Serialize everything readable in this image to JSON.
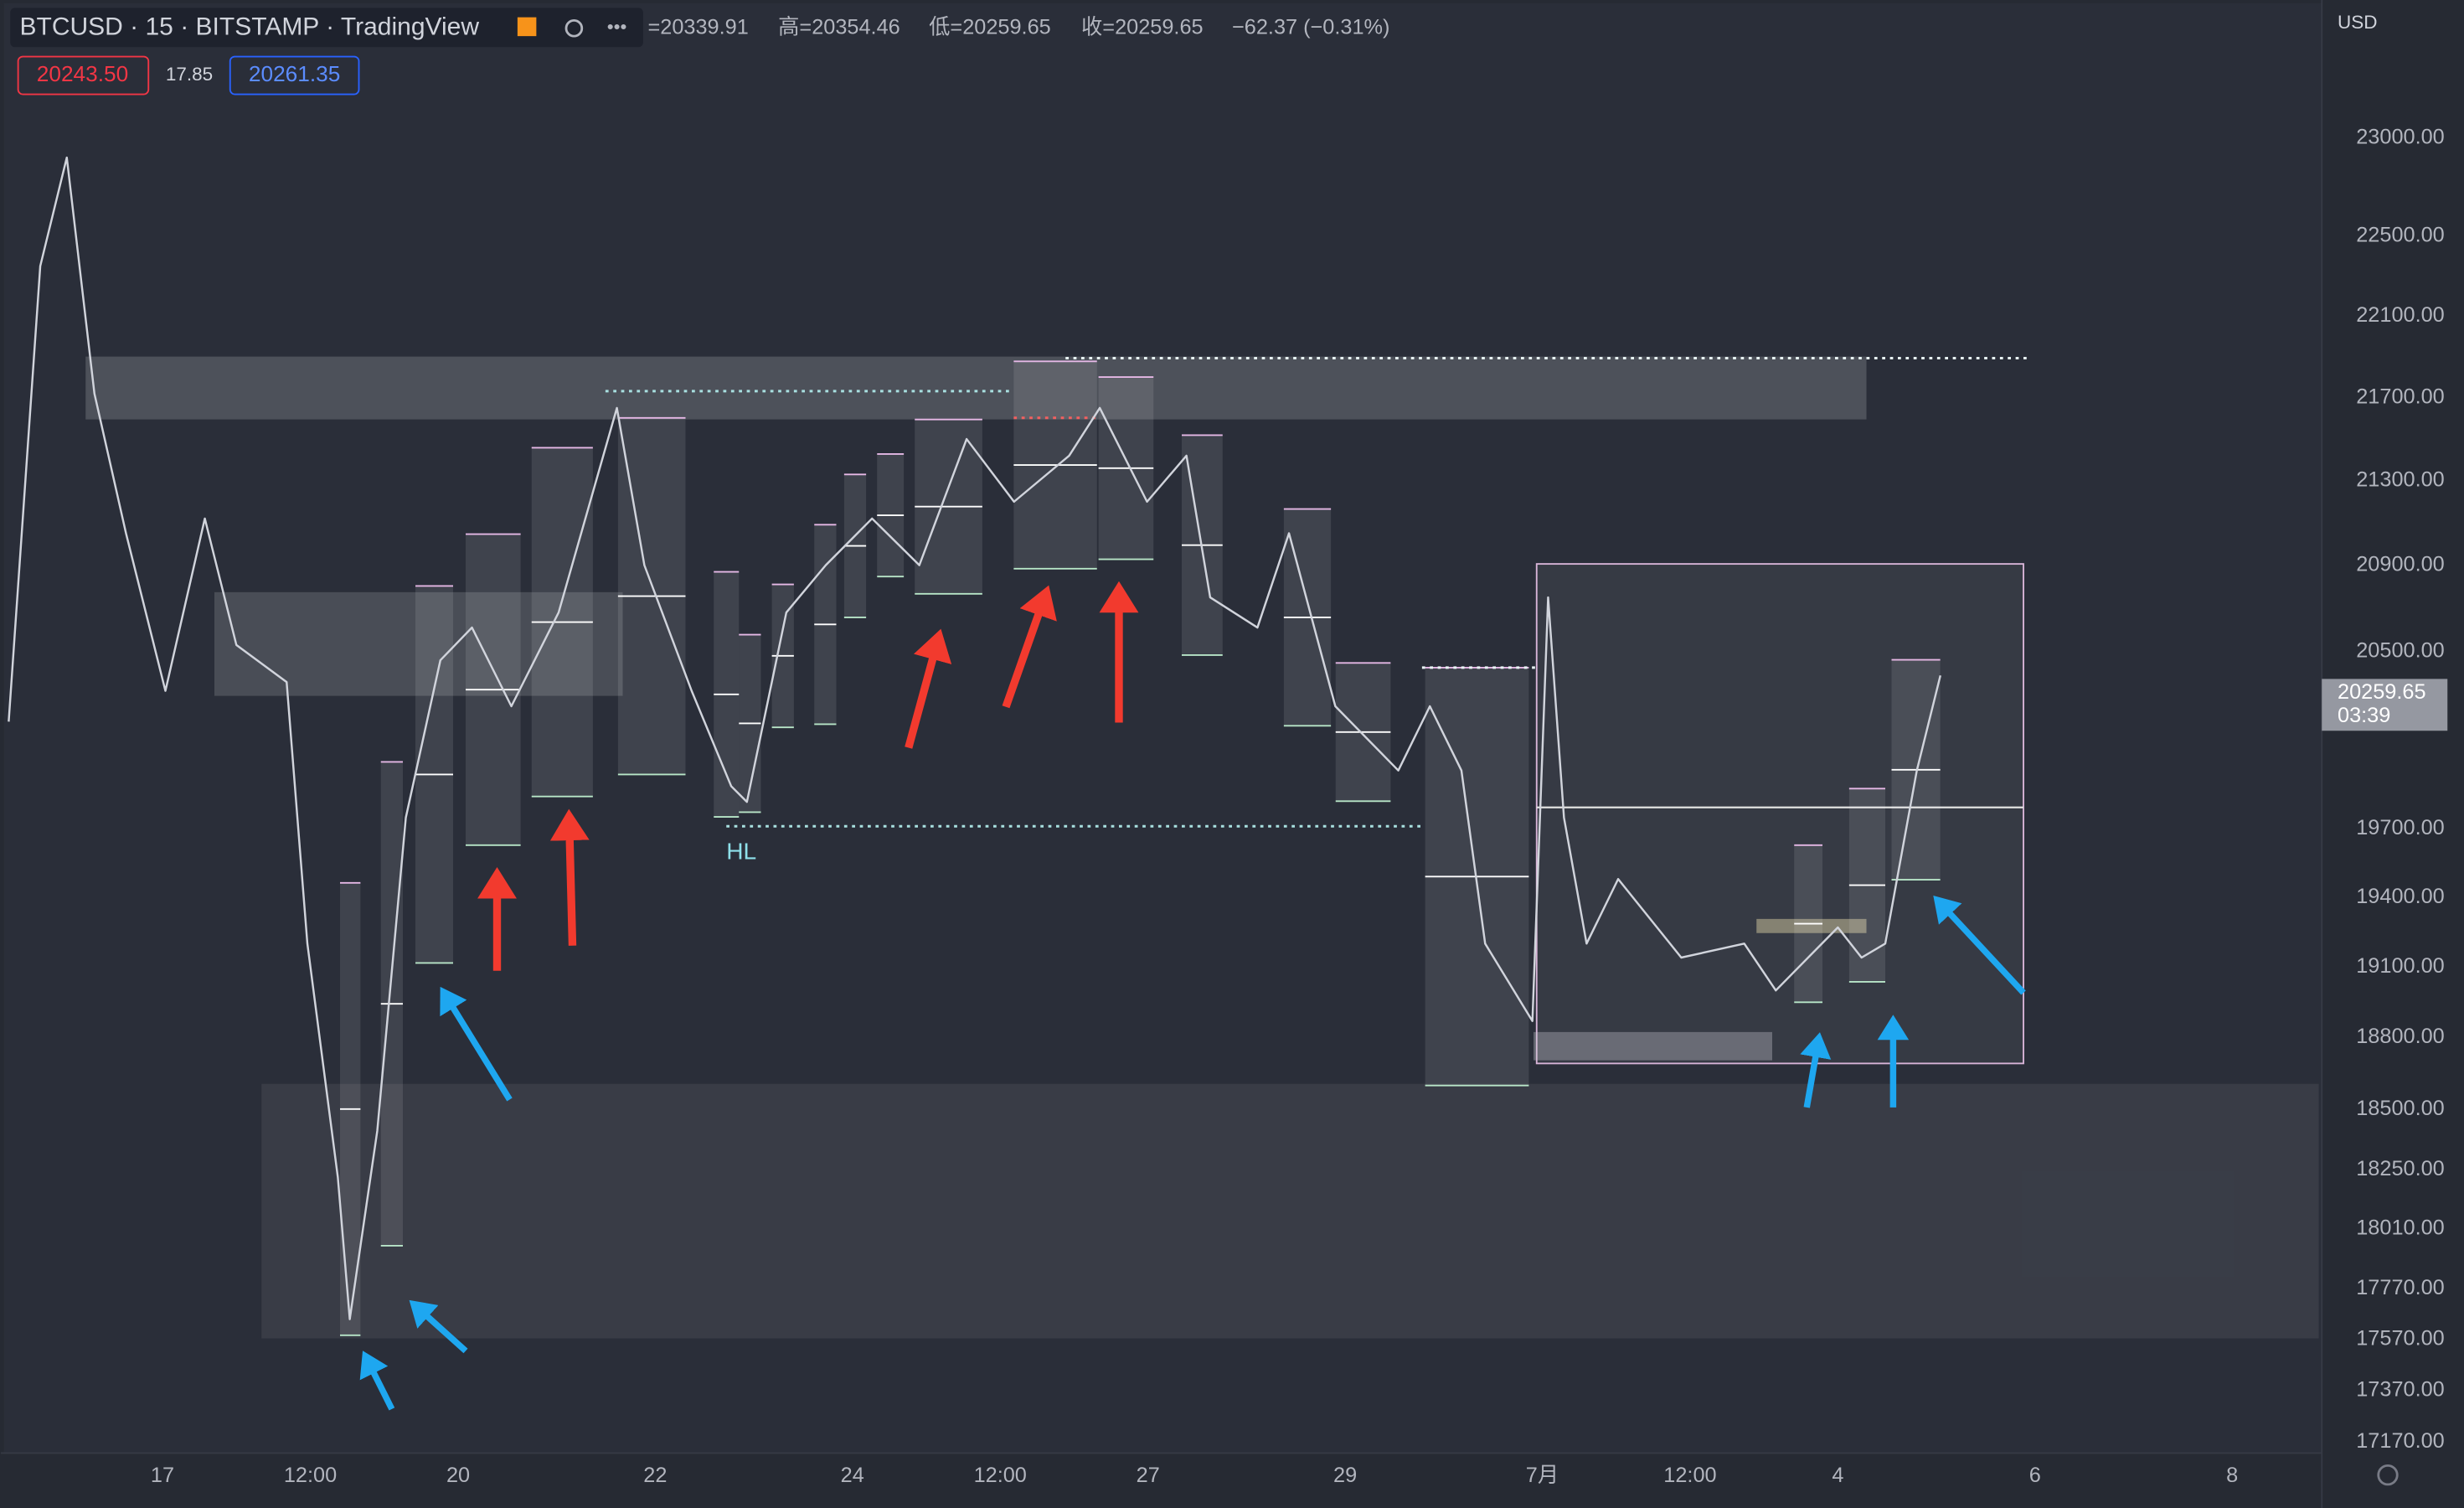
{
  "header": {
    "symbol_line": "BTCUSD · 15 · BITSTAMP · TradingView",
    "open": "=20339.91",
    "high": "高=20354.46",
    "low": "低=20259.65",
    "close": "收=20259.65",
    "change": "−62.37 (−0.31%)",
    "bid": "20243.50",
    "spread": "17.85",
    "ask": "20261.35",
    "currency": "USD"
  },
  "chart_data": {
    "type": "line",
    "log_scale": true,
    "grid": false,
    "annotations": [
      "HL"
    ],
    "series": [
      {
        "color": "#d1d4dc",
        "x": [
          -1.56,
          -1.24,
          -0.97,
          -0.69,
          -0.37,
          0.03,
          0.43,
          0.75,
          1.26,
          1.47,
          1.78,
          1.9,
          2.18,
          2.47,
          2.82,
          3.14,
          3.54,
          4.02,
          4.61,
          4.89,
          5.37,
          5.77,
          5.93,
          6.33,
          6.73,
          7.2,
          7.68,
          8.16,
          8.64,
          9.2,
          9.51,
          9.99,
          10.39,
          10.63,
          11.11,
          11.43,
          11.9,
          12.54,
          12.86,
          13.18,
          13.42,
          13.9,
          14.06,
          14.22,
          14.45,
          14.77,
          15.41,
          16.05,
          16.37,
          17.0,
          17.24,
          17.48,
          17.8,
          18.04
        ],
        "values": [
          20180,
          22350,
          22900,
          21720,
          21050,
          20320,
          21120,
          20530,
          20360,
          19200,
          18220,
          17650,
          18410,
          19750,
          20460,
          20610,
          20250,
          20680,
          21650,
          20900,
          20320,
          19890,
          19820,
          20680,
          20900,
          21120,
          20900,
          21500,
          21200,
          21420,
          21650,
          21200,
          21420,
          20750,
          20610,
          21050,
          20250,
          19960,
          20250,
          19960,
          19200,
          18870,
          20750,
          19750,
          19200,
          19480,
          19140,
          19200,
          19000,
          19270,
          19140,
          19200,
          19960,
          20390
        ]
      }
    ],
    "xlim": [
      -1.64,
      21.91
    ],
    "xticks": [
      {
        "value": 0,
        "label": "17"
      },
      {
        "value": 1.5,
        "label": "12:00"
      },
      {
        "value": 3,
        "label": "20"
      },
      {
        "value": 5,
        "label": "22"
      },
      {
        "value": 7,
        "label": "24"
      },
      {
        "value": 8.5,
        "label": "12:00"
      },
      {
        "value": 10,
        "label": "27"
      },
      {
        "value": 12,
        "label": "29"
      },
      {
        "value": 14,
        "label": "7月"
      },
      {
        "value": 15.5,
        "label": "12:00"
      },
      {
        "value": 17,
        "label": "4"
      },
      {
        "value": 19,
        "label": "6"
      },
      {
        "value": 21,
        "label": "8"
      }
    ],
    "ylim": [
      17128,
      23682
    ],
    "yticks": [
      {
        "value": 23000,
        "label": "23000.00"
      },
      {
        "value": 22500,
        "label": "22500.00"
      },
      {
        "value": 22100,
        "label": "22100.00"
      },
      {
        "value": 21700,
        "label": "21700.00"
      },
      {
        "value": 21300,
        "label": "21300.00"
      },
      {
        "value": 20900,
        "label": "20900.00"
      },
      {
        "value": 20500,
        "label": "20500.00"
      },
      {
        "value": 19700,
        "label": "19700.00"
      },
      {
        "value": 19400,
        "label": "19400.00"
      },
      {
        "value": 19100,
        "label": "19100.00"
      },
      {
        "value": 18800,
        "label": "18800.00"
      },
      {
        "value": 18500,
        "label": "18500.00"
      },
      {
        "value": 18250,
        "label": "18250.00"
      },
      {
        "value": 18010,
        "label": "18010.00"
      },
      {
        "value": 17770,
        "label": "17770.00"
      },
      {
        "value": 17570,
        "label": "17570.00"
      },
      {
        "value": 17370,
        "label": "17370.00"
      },
      {
        "value": 17170,
        "label": "17170.00"
      }
    ],
    "last_price": 20259.65,
    "countdown": "03:39"
  }
}
